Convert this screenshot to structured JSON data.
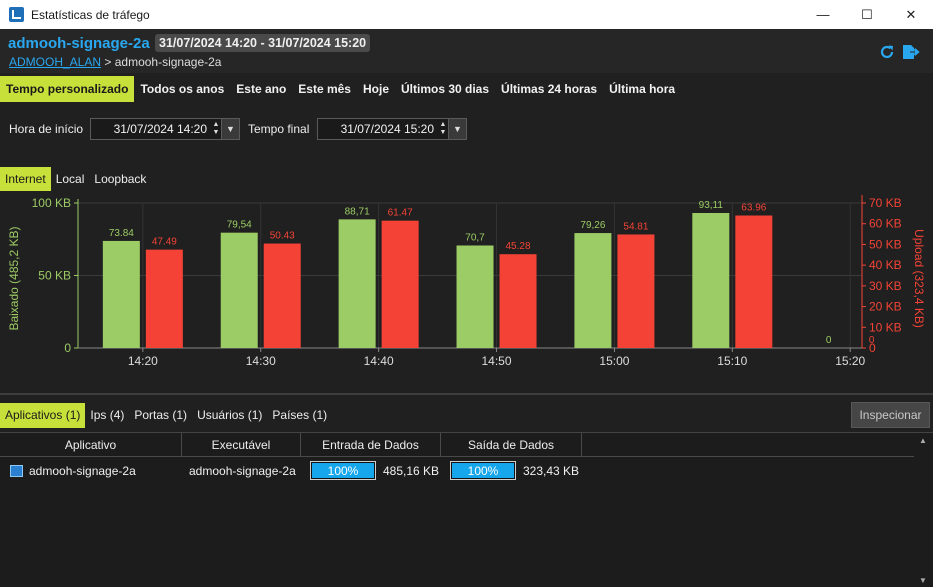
{
  "window": {
    "title": "Estatísticas de tráfego",
    "controls": {
      "minimize": "—",
      "maximize": "☐",
      "close": "✕"
    }
  },
  "header": {
    "device": "admooh-signage-2a",
    "date_range": "31/07/2024 14:20 - 31/07/2024 15:20",
    "breadcrumb": {
      "link": "ADMOOH_ALAN",
      "separator": ">",
      "current": "admooh-signage-2a"
    },
    "icons": [
      "refresh-icon",
      "export-icon"
    ]
  },
  "range_tabs": [
    {
      "label": "Tempo personalizado",
      "active": true
    },
    {
      "label": "Todos os anos",
      "active": false
    },
    {
      "label": "Este ano",
      "active": false
    },
    {
      "label": "Este mês",
      "active": false
    },
    {
      "label": "Hoje",
      "active": false
    },
    {
      "label": "Últimos 30 dias",
      "active": false
    },
    {
      "label": "Últimas 24 horas",
      "active": false
    },
    {
      "label": "Última hora",
      "active": false
    }
  ],
  "time": {
    "start_label": "Hora de início",
    "start_value": "31/07/2024 14:20",
    "end_label": "Tempo final",
    "end_value": "31/07/2024 15:20"
  },
  "net_tabs": [
    {
      "label": "Internet",
      "active": true
    },
    {
      "label": "Local",
      "active": false
    },
    {
      "label": "Loopback",
      "active": false
    }
  ],
  "colors": {
    "accent": "#29a8f0",
    "tab_active": "#c7e03a",
    "download": "#9ccc65",
    "upload": "#f44336",
    "progress": "#16a6ec"
  },
  "chart_data": {
    "type": "bar",
    "categories": [
      "14:20",
      "14:30",
      "14:40",
      "14:50",
      "15:00",
      "15:10",
      "15:20"
    ],
    "series": [
      {
        "name": "Baixado (485,2 KB)",
        "axis": "left",
        "color": "#9ccc65",
        "values": [
          73.84,
          79.54,
          88.71,
          70.7,
          79.26,
          93.11,
          0
        ],
        "labels": [
          "73.84",
          "79,54",
          "88,71",
          "70,7",
          "79,26",
          "93,11",
          "0"
        ]
      },
      {
        "name": "Upload (323,4 KB)",
        "axis": "right",
        "color": "#f44336",
        "values": [
          47.49,
          50.43,
          61.47,
          45.28,
          54.81,
          63.96,
          0
        ],
        "labels": [
          "47.49",
          "50.43",
          "61.47",
          "45.28",
          "54.81",
          "63.96",
          "0"
        ]
      }
    ],
    "ylabel_left": "Baixado (485,2 KB)",
    "ylabel_right": "Upload (323,4 KB)",
    "ylim_left": [
      0,
      100
    ],
    "ylim_right": [
      0,
      70
    ],
    "left_ticks": [
      {
        "value": 0,
        "label": "0"
      },
      {
        "value": 50,
        "label": "50 KB"
      },
      {
        "value": 100,
        "label": "100 KB"
      }
    ],
    "right_ticks": [
      {
        "value": 0,
        "label": "0"
      },
      {
        "value": 10,
        "label": "10 KB"
      },
      {
        "value": 20,
        "label": "20 KB"
      },
      {
        "value": 30,
        "label": "30 KB"
      },
      {
        "value": 40,
        "label": "40 KB"
      },
      {
        "value": 50,
        "label": "50 KB"
      },
      {
        "value": 60,
        "label": "60 KB"
      },
      {
        "value": 70,
        "label": "70 KB"
      }
    ],
    "grid": true
  },
  "bottom_tabs": [
    {
      "label": "Aplicativos (1)",
      "active": true
    },
    {
      "label": "Ips (4)",
      "active": false
    },
    {
      "label": "Portas (1)",
      "active": false
    },
    {
      "label": "Usuários (1)",
      "active": false
    },
    {
      "label": "Países (1)",
      "active": false
    }
  ],
  "inspect_label": "Inspecionar",
  "table": {
    "columns": [
      "Aplicativo",
      "Executável",
      "Entrada de Dados",
      "Saída de Dados"
    ],
    "rows": [
      {
        "app": "admooh-signage-2a",
        "exe": "admooh-signage-2a",
        "in_pct": "100%",
        "in_fraction": 1.0,
        "in_size": "485,16 KB",
        "out_pct": "100%",
        "out_fraction": 1.0,
        "out_size": "323,43 KB"
      }
    ]
  }
}
